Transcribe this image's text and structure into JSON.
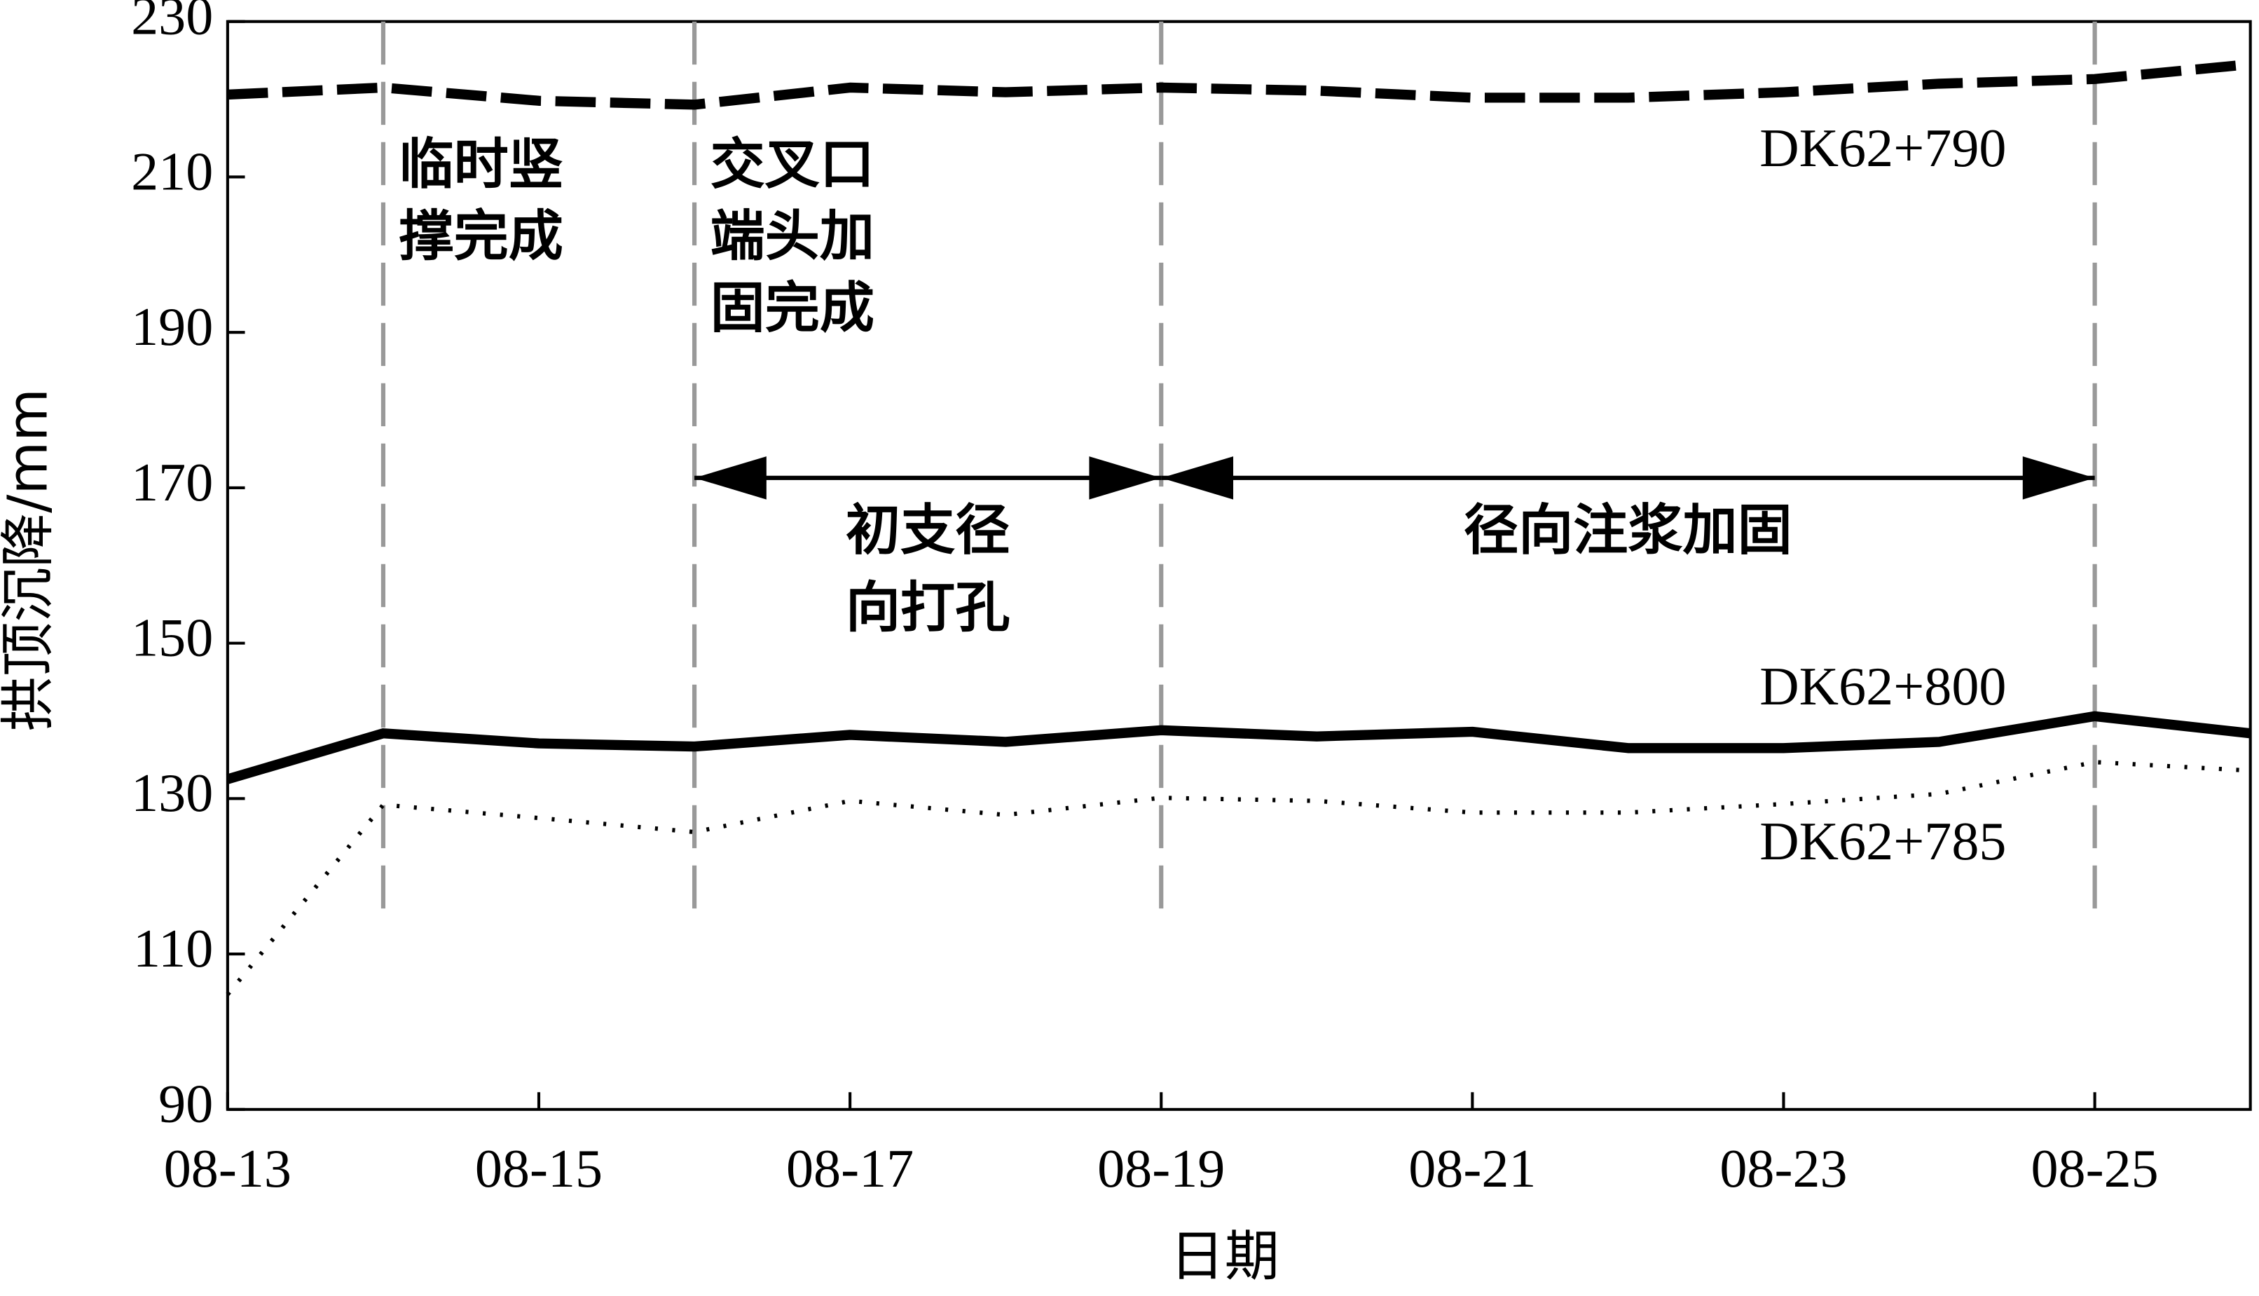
{
  "chart_data": {
    "type": "line",
    "xlabel": "日期",
    "ylabel": "拱顶沉降/mm",
    "categories": [
      "08-13",
      null,
      "08-15",
      null,
      "08-17",
      null,
      "08-19",
      null,
      "08-21",
      null,
      "08-23",
      null,
      "08-25",
      null
    ],
    "ylim": [
      90,
      230
    ],
    "yticks": [
      90,
      110,
      130,
      150,
      170,
      190,
      210,
      230
    ],
    "series": [
      {
        "name": "DK62+790",
        "color": "#000000",
        "line_style": "dashed",
        "values": [
          220.6,
          221.5,
          219.8,
          219.3,
          221.5,
          220.9,
          221.5,
          221.1,
          220.2,
          220.2,
          220.9,
          222.0,
          222.6,
          224.5
        ]
      },
      {
        "name": "DK62+800",
        "color": "#000000",
        "line_style": "solid",
        "values": [
          132.5,
          138.4,
          137.1,
          136.7,
          138.2,
          137.3,
          138.8,
          138.0,
          138.6,
          136.5,
          136.5,
          137.3,
          140.6,
          138.4
        ]
      },
      {
        "name": "DK62+785",
        "color": "#000000",
        "line_style": "dotted",
        "values": [
          104.8,
          129.2,
          127.5,
          125.7,
          129.7,
          127.9,
          130.1,
          129.7,
          128.2,
          128.2,
          129.3,
          130.6,
          134.7,
          133.6
        ]
      }
    ],
    "event_lines": [
      1,
      3,
      6,
      12
    ],
    "event_color": "#999999",
    "annotations": [
      {
        "x": 1,
        "lines": [
          "临时竖",
          "撑完成"
        ]
      },
      {
        "x": 3,
        "lines": [
          "交叉口",
          "端头加",
          "固完成"
        ]
      }
    ],
    "phases": [
      {
        "from": 3,
        "to": 6,
        "lines": [
          "初支径",
          "向打孔"
        ]
      },
      {
        "from": 6,
        "to": 12,
        "lines": [
          "径向注浆加固"
        ]
      }
    ]
  }
}
